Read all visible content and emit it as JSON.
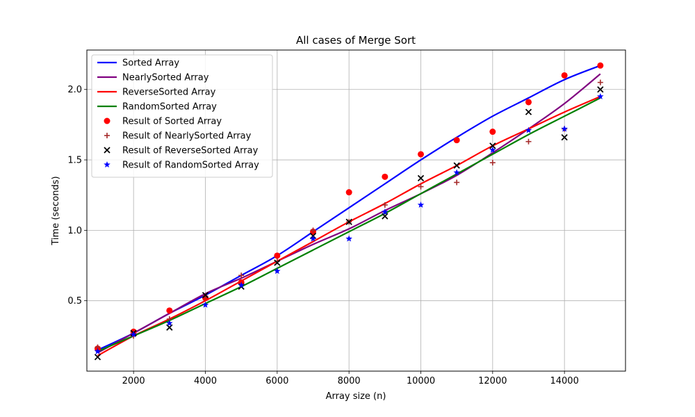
{
  "chart_data": {
    "type": "scatter",
    "title": "All cases of Merge Sort",
    "xlabel": "Array size (n)",
    "ylabel": "Time (seconds)",
    "xlim": [
      700,
      15700
    ],
    "ylim": [
      0.0,
      2.28
    ],
    "xticks": [
      2000,
      4000,
      6000,
      8000,
      10000,
      12000,
      14000
    ],
    "yticks": [
      0.5,
      1.0,
      1.5,
      2.0
    ],
    "xtick_labels": [
      "2000",
      "4000",
      "6000",
      "8000",
      "10000",
      "12000",
      "14000"
    ],
    "ytick_labels": [
      "0.5",
      "1.0",
      "1.5",
      "2.0"
    ],
    "grid": true,
    "legend_position": "upper-left",
    "x": [
      1000,
      2000,
      3000,
      4000,
      5000,
      6000,
      7000,
      8000,
      9000,
      10000,
      11000,
      12000,
      13000,
      14000,
      15000
    ],
    "fit_lines": [
      {
        "name": "Sorted Array",
        "color": "#0000ff",
        "points": [
          [
            1000,
            0.15
          ],
          [
            2000,
            0.27
          ],
          [
            3000,
            0.41
          ],
          [
            4000,
            0.54
          ],
          [
            5000,
            0.68
          ],
          [
            6000,
            0.82
          ],
          [
            7000,
            0.99
          ],
          [
            8000,
            1.16
          ],
          [
            9000,
            1.33
          ],
          [
            10000,
            1.5
          ],
          [
            11000,
            1.66
          ],
          [
            12000,
            1.81
          ],
          [
            13000,
            1.94
          ],
          [
            14000,
            2.07
          ],
          [
            15000,
            2.17
          ]
        ]
      },
      {
        "name": "NearlySorted Array",
        "color": "#800080",
        "points": [
          [
            1000,
            0.13
          ],
          [
            2000,
            0.27
          ],
          [
            3000,
            0.41
          ],
          [
            4000,
            0.55
          ],
          [
            5000,
            0.66
          ],
          [
            6000,
            0.78
          ],
          [
            7000,
            0.9
          ],
          [
            8000,
            1.01
          ],
          [
            9000,
            1.14
          ],
          [
            10000,
            1.26
          ],
          [
            11000,
            1.39
          ],
          [
            12000,
            1.55
          ],
          [
            13000,
            1.72
          ],
          [
            14000,
            1.9
          ],
          [
            15000,
            2.11
          ]
        ]
      },
      {
        "name": "ReverseSorted Array",
        "color": "#ff0000",
        "points": [
          [
            1000,
            0.11
          ],
          [
            2000,
            0.25
          ],
          [
            3000,
            0.37
          ],
          [
            4000,
            0.5
          ],
          [
            5000,
            0.64
          ],
          [
            6000,
            0.78
          ],
          [
            7000,
            0.92
          ],
          [
            8000,
            1.06
          ],
          [
            9000,
            1.19
          ],
          [
            10000,
            1.33
          ],
          [
            11000,
            1.46
          ],
          [
            12000,
            1.6
          ],
          [
            13000,
            1.72
          ],
          [
            14000,
            1.84
          ],
          [
            15000,
            1.95
          ]
        ]
      },
      {
        "name": "RandomSorted Array",
        "color": "#008000",
        "points": [
          [
            1000,
            0.14
          ],
          [
            2000,
            0.25
          ],
          [
            3000,
            0.36
          ],
          [
            4000,
            0.48
          ],
          [
            5000,
            0.6
          ],
          [
            6000,
            0.73
          ],
          [
            7000,
            0.86
          ],
          [
            8000,
            0.99
          ],
          [
            9000,
            1.12
          ],
          [
            10000,
            1.26
          ],
          [
            11000,
            1.4
          ],
          [
            12000,
            1.54
          ],
          [
            13000,
            1.68
          ],
          [
            14000,
            1.81
          ],
          [
            15000,
            1.94
          ]
        ]
      }
    ],
    "scatter_series": [
      {
        "name": "Result of Sorted Array",
        "marker": "circle",
        "color": "#ff0000",
        "values": [
          0.16,
          0.28,
          0.43,
          0.52,
          0.63,
          0.82,
          0.99,
          1.27,
          1.38,
          1.54,
          1.64,
          1.7,
          1.91,
          2.1,
          2.17
        ]
      },
      {
        "name": "Result of NearlySorted Array",
        "marker": "plus",
        "color": "#a52a2a",
        "values": [
          0.17,
          0.25,
          0.37,
          0.53,
          0.68,
          0.78,
          1.0,
          1.06,
          1.18,
          1.31,
          1.34,
          1.48,
          1.63,
          1.72,
          2.05
        ]
      },
      {
        "name": "Result of ReverseSorted Array",
        "marker": "x",
        "color": "#000000",
        "values": [
          0.1,
          0.27,
          0.31,
          0.54,
          0.6,
          0.77,
          0.96,
          1.06,
          1.1,
          1.37,
          1.46,
          1.6,
          1.84,
          1.66,
          2.0
        ]
      },
      {
        "name": "Result of RandomSorted Array",
        "marker": "star",
        "color": "#0000ff",
        "values": [
          0.14,
          0.26,
          0.34,
          0.47,
          0.61,
          0.71,
          0.94,
          0.94,
          1.13,
          1.18,
          1.41,
          1.57,
          1.71,
          1.72,
          1.95
        ]
      }
    ]
  }
}
